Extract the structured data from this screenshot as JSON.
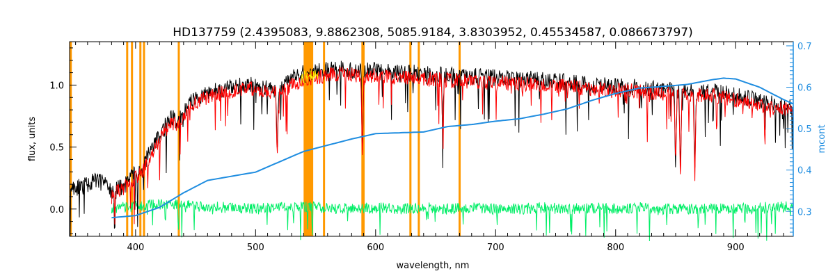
{
  "chart_data": {
    "type": "line",
    "title": "HD137759   (2.4395083, 9.8862308, 5085.9184, 3.8303952, 0.45534587, 0.086673797)",
    "xlabel": "wavelength, nm",
    "ylabel": "flux, units",
    "y2label": "mcont",
    "xlim": [
      345,
      948
    ],
    "ylim": [
      -0.22,
      1.35
    ],
    "y2lim": [
      0.24,
      0.71
    ],
    "xticks": [
      "400",
      "500",
      "600",
      "700",
      "800",
      "900"
    ],
    "xtick_values": [
      400,
      500,
      600,
      700,
      800,
      900
    ],
    "yticks": [
      "0.0",
      "0.5",
      "1.0"
    ],
    "ytick_values": [
      0.0,
      0.5,
      1.0
    ],
    "y2ticks": [
      "0.3",
      "0.4",
      "0.5",
      "0.6",
      "0.7"
    ],
    "y2tick_values": [
      0.3,
      0.4,
      0.5,
      0.6,
      0.7
    ],
    "grid": false,
    "colors": {
      "observed": "#000000",
      "model": "#ff0000",
      "residual": "#00ee66",
      "continuum": "#1f8de0",
      "masks": "#ff9900",
      "highlight": "#ffee00"
    },
    "series": [
      {
        "key": "observed",
        "axis": "left",
        "x": [
          345,
          355,
          365,
          375,
          380,
          385,
          390,
          395,
          400,
          405,
          410,
          415,
          420,
          425,
          430,
          435,
          440,
          445,
          450,
          460,
          470,
          480,
          490,
          500,
          510,
          520,
          530,
          540,
          545,
          550,
          560,
          570,
          580,
          590,
          600,
          620,
          640,
          660,
          680,
          700,
          720,
          740,
          760,
          780,
          800,
          820,
          840,
          860,
          880,
          900,
          920,
          940,
          948
        ],
        "y": [
          0.17,
          0.18,
          0.22,
          0.24,
          0.12,
          0.16,
          0.18,
          0.25,
          0.28,
          0.3,
          0.42,
          0.52,
          0.6,
          0.68,
          0.74,
          0.7,
          0.78,
          0.85,
          0.89,
          0.93,
          0.96,
          0.98,
          1.0,
          1.0,
          0.98,
          0.95,
          1.05,
          1.1,
          1.09,
          1.11,
          1.13,
          1.14,
          1.12,
          1.11,
          1.12,
          1.1,
          1.09,
          1.08,
          1.07,
          1.06,
          1.05,
          1.04,
          1.02,
          1.0,
          0.99,
          0.98,
          0.96,
          0.95,
          0.95,
          0.91,
          0.87,
          0.83,
          0.82
        ]
      },
      {
        "key": "model",
        "axis": "left",
        "x": [
          380,
          385,
          390,
          395,
          400,
          405,
          410,
          415,
          420,
          425,
          430,
          435,
          440,
          445,
          450,
          460,
          470,
          480,
          490,
          500,
          510,
          520,
          530,
          540,
          545,
          550,
          560,
          570,
          580,
          590,
          600,
          620,
          640,
          660,
          680,
          700,
          720,
          740,
          760,
          780,
          800,
          820,
          840,
          860,
          880,
          900,
          920,
          940,
          948
        ],
        "y": [
          0.1,
          0.14,
          0.16,
          0.22,
          0.26,
          0.28,
          0.38,
          0.48,
          0.56,
          0.64,
          0.7,
          0.67,
          0.74,
          0.82,
          0.86,
          0.9,
          0.93,
          0.95,
          0.97,
          0.97,
          0.95,
          0.92,
          1.0,
          1.05,
          1.04,
          1.06,
          1.08,
          1.09,
          1.08,
          1.07,
          1.08,
          1.06,
          1.05,
          1.04,
          1.03,
          1.02,
          1.01,
          1.0,
          0.99,
          0.97,
          0.96,
          0.95,
          0.93,
          0.92,
          0.92,
          0.88,
          0.84,
          0.8,
          0.79
        ]
      },
      {
        "key": "residual",
        "axis": "left",
        "x": [
          380,
          400,
          420,
          440,
          460,
          480,
          500,
          520,
          540,
          560,
          580,
          600,
          620,
          640,
          660,
          680,
          700,
          720,
          740,
          760,
          780,
          800,
          820,
          840,
          860,
          880,
          900,
          920,
          940,
          948
        ],
        "y": [
          0.01,
          0.02,
          0.04,
          0.03,
          0.02,
          0.01,
          0.0,
          0.01,
          0.02,
          0.01,
          0.0,
          0.01,
          0.0,
          0.01,
          0.0,
          0.01,
          0.0,
          0.0,
          0.01,
          0.0,
          0.01,
          0.0,
          0.01,
          0.0,
          0.0,
          0.01,
          0.0,
          0.01,
          0.02,
          0.02
        ]
      },
      {
        "key": "continuum",
        "axis": "right",
        "x": [
          380,
          400,
          420,
          440,
          460,
          480,
          500,
          520,
          540,
          560,
          580,
          600,
          620,
          640,
          660,
          680,
          700,
          720,
          740,
          760,
          780,
          800,
          820,
          840,
          860,
          880,
          890,
          900,
          920,
          940,
          948
        ],
        "y": [
          0.285,
          0.29,
          0.31,
          0.345,
          0.375,
          0.385,
          0.395,
          0.42,
          0.445,
          0.46,
          0.475,
          0.488,
          0.49,
          0.492,
          0.505,
          0.51,
          0.518,
          0.524,
          0.535,
          0.548,
          0.568,
          0.585,
          0.598,
          0.602,
          0.607,
          0.618,
          0.622,
          0.62,
          0.6,
          0.57,
          0.56
        ]
      }
    ],
    "masked_lines": [
      346,
      393,
      397,
      404,
      407,
      436,
      557,
      589,
      590,
      629,
      636,
      670
    ],
    "masked_band": [
      540,
      548
    ],
    "strong_absorptions": [
      {
        "x": 518,
        "depth": 0.55
      },
      {
        "x": 589,
        "depth": 0.72
      },
      {
        "x": 656,
        "depth": 0.42
      },
      {
        "x": 850,
        "depth": 0.62
      },
      {
        "x": 854,
        "depth": 0.7
      },
      {
        "x": 866,
        "depth": 0.68
      }
    ]
  }
}
